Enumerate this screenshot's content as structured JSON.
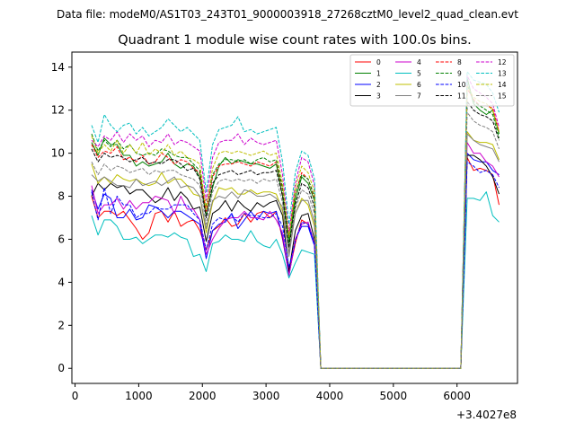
{
  "chart_data": {
    "type": "line",
    "suptitle": "Data file: modeM0/AS1T03_243T01_9000003918_27268cztM0_level2_quad_clean.evt",
    "title": "Quadrant 1 module wise count rates with 100.0s bins.",
    "xlabel": "",
    "ylabel": "",
    "x_offset_label": "+3.4027e8",
    "xlim": [
      -50,
      6950
    ],
    "ylim": [
      -0.7,
      14.7
    ],
    "xticks": [
      0,
      1000,
      2000,
      3000,
      4000,
      5000,
      6000
    ],
    "yticks": [
      0,
      2,
      4,
      6,
      8,
      10,
      12,
      14
    ],
    "xtick_labels": [
      "0",
      "1000",
      "2000",
      "3000",
      "4000",
      "5000",
      "6000"
    ],
    "ytick_labels": [
      "0",
      "2",
      "4",
      "6",
      "8",
      "10",
      "12",
      "14"
    ],
    "grid": false,
    "legend_position": "top-right",
    "x": [
      260,
      360,
      460,
      560,
      660,
      760,
      860,
      960,
      1060,
      1160,
      1260,
      1360,
      1460,
      1560,
      1660,
      1760,
      1860,
      1960,
      2060,
      2160,
      2260,
      2360,
      2460,
      2560,
      2660,
      2760,
      2860,
      2960,
      3060,
      3160,
      3260,
      3360,
      3460,
      3560,
      3660,
      3760,
      3860,
      3960,
      4060,
      4160,
      4260,
      4360,
      4460,
      4560,
      4660,
      4760,
      4860,
      4960,
      5060,
      5160,
      5260,
      5360,
      5460,
      5560,
      5660,
      5760,
      5860,
      5960,
      6060,
      6160,
      6260,
      6360,
      6460,
      6560,
      6660
    ],
    "series": [
      {
        "name": "0",
        "color": "#ff0000",
        "dashed": false,
        "values": [
          8.0,
          7.0,
          7.3,
          7.3,
          7.1,
          7.3,
          6.9,
          6.5,
          6.0,
          6.3,
          7.2,
          7.3,
          6.8,
          7.3,
          6.6,
          6.8,
          6.9,
          6.4,
          5.5,
          6.4,
          6.6,
          7.0,
          6.6,
          6.7,
          7.2,
          6.8,
          7.2,
          7.3,
          7.0,
          7.3,
          6.0,
          4.4,
          5.8,
          6.9,
          6.7,
          5.8,
          0,
          0,
          0,
          0,
          0,
          0,
          0,
          0,
          0,
          0,
          0,
          0,
          0,
          0,
          0,
          0,
          0,
          0,
          0,
          0,
          0,
          0,
          0,
          9.8,
          9.2,
          9.3,
          9.2,
          9.0,
          7.6
        ]
      },
      {
        "name": "1",
        "color": "#008000",
        "dashed": false,
        "values": [
          10.5,
          9.9,
          10.7,
          10.4,
          10.4,
          9.9,
          9.9,
          9.4,
          9.6,
          9.4,
          9.5,
          9.6,
          10.0,
          9.5,
          9.3,
          9.5,
          9.4,
          8.9,
          7.1,
          8.4,
          9.4,
          9.8,
          9.5,
          9.7,
          9.6,
          9.5,
          9.5,
          9.4,
          9.3,
          9.5,
          8.0,
          5.8,
          7.8,
          8.9,
          8.6,
          7.8,
          0,
          0,
          0,
          0,
          0,
          0,
          0,
          0,
          0,
          0,
          0,
          0,
          0,
          0,
          0,
          0,
          0,
          0,
          0,
          0,
          0,
          0,
          0,
          13.5,
          12.3,
          12.0,
          11.8,
          12.0,
          10.9
        ]
      },
      {
        "name": "2",
        "color": "#0000ff",
        "dashed": false,
        "values": [
          8.3,
          7.4,
          8.1,
          7.9,
          7.0,
          7.0,
          7.4,
          6.9,
          7.0,
          7.6,
          7.5,
          7.3,
          7.0,
          7.3,
          7.3,
          7.1,
          6.9,
          6.7,
          5.1,
          6.4,
          6.7,
          6.8,
          7.2,
          6.5,
          6.9,
          7.3,
          6.9,
          7.3,
          7.2,
          7.3,
          6.1,
          4.3,
          6.0,
          6.6,
          6.6,
          5.7,
          0,
          0,
          0,
          0,
          0,
          0,
          0,
          0,
          0,
          0,
          0,
          0,
          0,
          0,
          0,
          0,
          0,
          0,
          0,
          0,
          0,
          0,
          0,
          10.0,
          9.7,
          9.6,
          9.6,
          9.2,
          9.0
        ]
      },
      {
        "name": "3",
        "color": "#000000",
        "dashed": false,
        "values": [
          8.0,
          8.6,
          8.3,
          8.6,
          8.4,
          8.5,
          8.1,
          8.3,
          8.3,
          8.0,
          7.7,
          7.9,
          8.4,
          7.8,
          8.2,
          7.9,
          7.4,
          7.5,
          5.9,
          7.2,
          7.4,
          7.8,
          7.3,
          7.8,
          7.5,
          7.3,
          7.7,
          7.5,
          7.7,
          7.8,
          7.1,
          4.5,
          6.4,
          7.1,
          7.2,
          6.0,
          0,
          0,
          0,
          0,
          0,
          0,
          0,
          0,
          0,
          0,
          0,
          0,
          0,
          0,
          0,
          0,
          0,
          0,
          0,
          0,
          0,
          0,
          0,
          9.9,
          9.9,
          9.7,
          9.4,
          8.9,
          8.1
        ]
      },
      {
        "name": "4",
        "color": "#cc00cc",
        "dashed": false,
        "values": [
          8.5,
          7.2,
          7.6,
          7.6,
          7.9,
          7.4,
          7.8,
          7.4,
          7.7,
          7.7,
          8.0,
          7.9,
          7.8,
          7.2,
          8.0,
          7.4,
          7.4,
          6.9,
          5.3,
          6.0,
          6.5,
          6.9,
          7.0,
          7.0,
          7.3,
          7.0,
          7.0,
          6.9,
          7.3,
          6.9,
          6.3,
          4.3,
          6.0,
          6.7,
          6.8,
          5.8,
          0,
          0,
          0,
          0,
          0,
          0,
          0,
          0,
          0,
          0,
          0,
          0,
          0,
          0,
          0,
          0,
          0,
          0,
          0,
          0,
          0,
          0,
          0,
          10.5,
          10.0,
          10.0,
          9.6,
          9.4,
          8.9
        ]
      },
      {
        "name": "5",
        "color": "#00bfbf",
        "dashed": false,
        "values": [
          7.1,
          6.2,
          6.9,
          6.9,
          6.6,
          6.0,
          6.0,
          6.1,
          5.8,
          6.0,
          6.2,
          6.2,
          6.1,
          6.3,
          6.1,
          6.0,
          5.2,
          5.3,
          4.5,
          5.8,
          5.9,
          6.2,
          6.0,
          6.0,
          5.9,
          6.4,
          5.9,
          5.7,
          5.6,
          6.0,
          5.3,
          4.2,
          4.9,
          5.5,
          5.4,
          5.3,
          0,
          0,
          0,
          0,
          0,
          0,
          0,
          0,
          0,
          0,
          0,
          0,
          0,
          0,
          0,
          0,
          0,
          0,
          0,
          0,
          0,
          0,
          0,
          7.9,
          7.9,
          7.8,
          8.2,
          7.1,
          6.8
        ]
      },
      {
        "name": "6",
        "color": "#bfbf00",
        "dashed": false,
        "values": [
          9.5,
          8.6,
          8.9,
          8.6,
          9.0,
          8.8,
          8.7,
          8.8,
          8.6,
          8.5,
          8.6,
          9.1,
          8.6,
          8.8,
          8.8,
          8.5,
          8.1,
          8.0,
          6.3,
          7.7,
          8.4,
          8.3,
          8.4,
          8.1,
          8.1,
          8.3,
          8.1,
          8.2,
          8.2,
          8.1,
          7.3,
          5.3,
          7.2,
          7.9,
          7.6,
          6.6,
          0,
          0,
          0,
          0,
          0,
          0,
          0,
          0,
          0,
          0,
          0,
          0,
          0,
          0,
          0,
          0,
          0,
          0,
          0,
          0,
          0,
          0,
          0,
          11.0,
          10.6,
          10.5,
          10.5,
          10.4,
          9.7
        ]
      },
      {
        "name": "7",
        "color": "#808080",
        "dashed": false,
        "values": [
          9.0,
          8.7,
          8.9,
          8.7,
          8.5,
          8.5,
          8.4,
          8.8,
          8.5,
          8.6,
          8.7,
          8.5,
          8.7,
          8.9,
          8.4,
          8.5,
          8.4,
          8.0,
          6.5,
          7.8,
          8.0,
          7.9,
          8.2,
          7.9,
          8.3,
          8.2,
          8.0,
          8.0,
          8.1,
          7.9,
          7.5,
          5.2,
          7.2,
          7.8,
          7.8,
          6.8,
          0,
          0,
          0,
          0,
          0,
          0,
          0,
          0,
          0,
          0,
          0,
          0,
          0,
          0,
          0,
          0,
          0,
          0,
          0,
          0,
          0,
          0,
          0,
          10.9,
          10.6,
          10.4,
          10.3,
          10.2,
          9.6
        ]
      },
      {
        "name": "8",
        "color": "#ff0000",
        "dashed": true,
        "values": [
          10.4,
          9.8,
          10.1,
          10.0,
          10.3,
          9.7,
          9.8,
          9.6,
          9.9,
          9.5,
          9.6,
          10.0,
          9.8,
          9.5,
          9.7,
          9.6,
          9.3,
          9.1,
          7.3,
          8.9,
          9.4,
          9.5,
          9.5,
          9.6,
          9.5,
          9.4,
          9.6,
          9.5,
          9.4,
          9.6,
          8.3,
          6.2,
          8.1,
          9.1,
          8.8,
          7.9,
          0,
          0,
          0,
          0,
          0,
          0,
          0,
          0,
          0,
          0,
          0,
          0,
          0,
          0,
          0,
          0,
          0,
          0,
          0,
          0,
          0,
          0,
          0,
          13.0,
          12.5,
          12.2,
          12.2,
          12.1,
          11.0
        ]
      },
      {
        "name": "9",
        "color": "#008000",
        "dashed": true,
        "values": [
          10.9,
          10.1,
          10.6,
          10.3,
          10.6,
          10.2,
          10.4,
          10.0,
          9.9,
          10.0,
          9.9,
          10.2,
          10.1,
          9.9,
          9.8,
          9.8,
          9.5,
          9.2,
          7.5,
          9.0,
          9.5,
          9.7,
          9.7,
          9.6,
          9.7,
          9.5,
          9.7,
          9.8,
          9.6,
          9.7,
          8.4,
          6.0,
          8.1,
          9.0,
          8.8,
          8.0,
          0,
          0,
          0,
          0,
          0,
          0,
          0,
          0,
          0,
          0,
          0,
          0,
          0,
          0,
          0,
          0,
          0,
          0,
          0,
          0,
          0,
          0,
          0,
          13.2,
          12.4,
          12.2,
          12.0,
          11.8,
          10.7
        ]
      },
      {
        "name": "10",
        "color": "#0000ff",
        "dashed": true,
        "values": [
          8.2,
          6.9,
          8.4,
          7.2,
          8.0,
          7.6,
          7.6,
          7.0,
          7.2,
          7.2,
          7.5,
          7.4,
          7.4,
          7.6,
          7.6,
          7.6,
          7.2,
          6.9,
          5.5,
          6.7,
          7.0,
          6.9,
          7.1,
          6.8,
          7.2,
          7.1,
          7.1,
          7.0,
          7.0,
          7.2,
          6.6,
          4.7,
          5.9,
          6.8,
          6.7,
          5.8,
          0,
          0,
          0,
          0,
          0,
          0,
          0,
          0,
          0,
          0,
          0,
          0,
          0,
          0,
          0,
          0,
          0,
          0,
          0,
          0,
          0,
          0,
          0,
          9.6,
          9.4,
          9.1,
          9.2,
          9.0,
          8.4
        ]
      },
      {
        "name": "11",
        "color": "#000000",
        "dashed": true,
        "values": [
          10.2,
          9.6,
          10.0,
          9.8,
          9.9,
          9.8,
          9.6,
          9.7,
          9.8,
          9.5,
          9.6,
          9.5,
          9.7,
          9.7,
          9.5,
          9.2,
          9.3,
          8.8,
          7.0,
          8.6,
          9.0,
          9.1,
          9.2,
          9.0,
          9.1,
          9.2,
          9.0,
          9.1,
          9.1,
          9.2,
          8.0,
          5.6,
          7.6,
          8.6,
          8.4,
          7.5,
          0,
          0,
          0,
          0,
          0,
          0,
          0,
          0,
          0,
          0,
          0,
          0,
          0,
          0,
          0,
          0,
          0,
          0,
          0,
          0,
          0,
          0,
          0,
          12.4,
          12.0,
          11.8,
          11.7,
          11.5,
          10.6
        ]
      },
      {
        "name": "12",
        "color": "#cc00cc",
        "dashed": true,
        "values": [
          10.6,
          10.3,
          10.8,
          10.6,
          11.0,
          10.5,
          10.9,
          10.6,
          10.8,
          10.3,
          10.6,
          10.5,
          10.9,
          10.4,
          10.6,
          10.5,
          10.3,
          10.1,
          7.8,
          9.8,
          10.5,
          10.6,
          10.6,
          10.9,
          10.4,
          10.7,
          10.5,
          10.4,
          10.5,
          10.6,
          9.0,
          6.3,
          8.6,
          9.8,
          9.6,
          8.5,
          0,
          0,
          0,
          0,
          0,
          0,
          0,
          0,
          0,
          0,
          0,
          0,
          0,
          0,
          0,
          0,
          0,
          0,
          0,
          0,
          0,
          0,
          0,
          13.6,
          13.0,
          12.8,
          12.6,
          12.3,
          11.2
        ]
      },
      {
        "name": "13",
        "color": "#00bfbf",
        "dashed": true,
        "values": [
          11.3,
          10.5,
          11.8,
          11.3,
          11.0,
          11.3,
          11.4,
          10.9,
          11.2,
          10.8,
          11.0,
          11.2,
          11.6,
          11.3,
          11.0,
          11.2,
          10.9,
          10.6,
          8.2,
          10.4,
          11.1,
          11.2,
          11.3,
          11.7,
          11.0,
          11.1,
          10.9,
          11.0,
          11.1,
          11.2,
          9.6,
          6.7,
          9.1,
          10.1,
          9.9,
          8.8,
          0,
          0,
          0,
          0,
          0,
          0,
          0,
          0,
          0,
          0,
          0,
          0,
          0,
          0,
          0,
          0,
          0,
          0,
          0,
          0,
          0,
          0,
          0,
          13.8,
          13.4,
          13.3,
          13.2,
          12.8,
          11.9
        ]
      },
      {
        "name": "14",
        "color": "#bfbf00",
        "dashed": true,
        "values": [
          10.8,
          10.0,
          10.4,
          10.1,
          10.6,
          10.0,
          10.4,
          10.0,
          10.5,
          9.9,
          10.2,
          10.0,
          10.4,
          9.9,
          10.1,
          9.8,
          9.7,
          9.5,
          7.4,
          9.3,
          10.0,
          10.1,
          10.0,
          10.1,
          10.0,
          9.9,
          10.0,
          10.1,
          9.9,
          10.0,
          8.6,
          6.1,
          8.4,
          9.4,
          9.1,
          8.2,
          0,
          0,
          0,
          0,
          0,
          0,
          0,
          0,
          0,
          0,
          0,
          0,
          0,
          0,
          0,
          0,
          0,
          0,
          0,
          0,
          0,
          0,
          0,
          13.1,
          12.6,
          12.4,
          12.3,
          12.0,
          11.0
        ]
      },
      {
        "name": "15",
        "color": "#808080",
        "dashed": true,
        "values": [
          9.6,
          9.0,
          9.5,
          9.2,
          9.4,
          9.3,
          9.1,
          9.2,
          9.3,
          9.0,
          9.2,
          9.1,
          9.2,
          9.2,
          9.0,
          8.9,
          8.8,
          8.5,
          6.7,
          8.2,
          8.7,
          8.8,
          8.7,
          8.8,
          8.7,
          8.8,
          8.6,
          8.8,
          8.7,
          8.8,
          7.7,
          5.4,
          7.4,
          8.3,
          8.1,
          7.2,
          0,
          0,
          0,
          0,
          0,
          0,
          0,
          0,
          0,
          0,
          0,
          0,
          0,
          0,
          0,
          0,
          0,
          0,
          0,
          0,
          0,
          0,
          0,
          11.9,
          11.5,
          11.3,
          11.2,
          11.0,
          10.2
        ]
      }
    ]
  }
}
